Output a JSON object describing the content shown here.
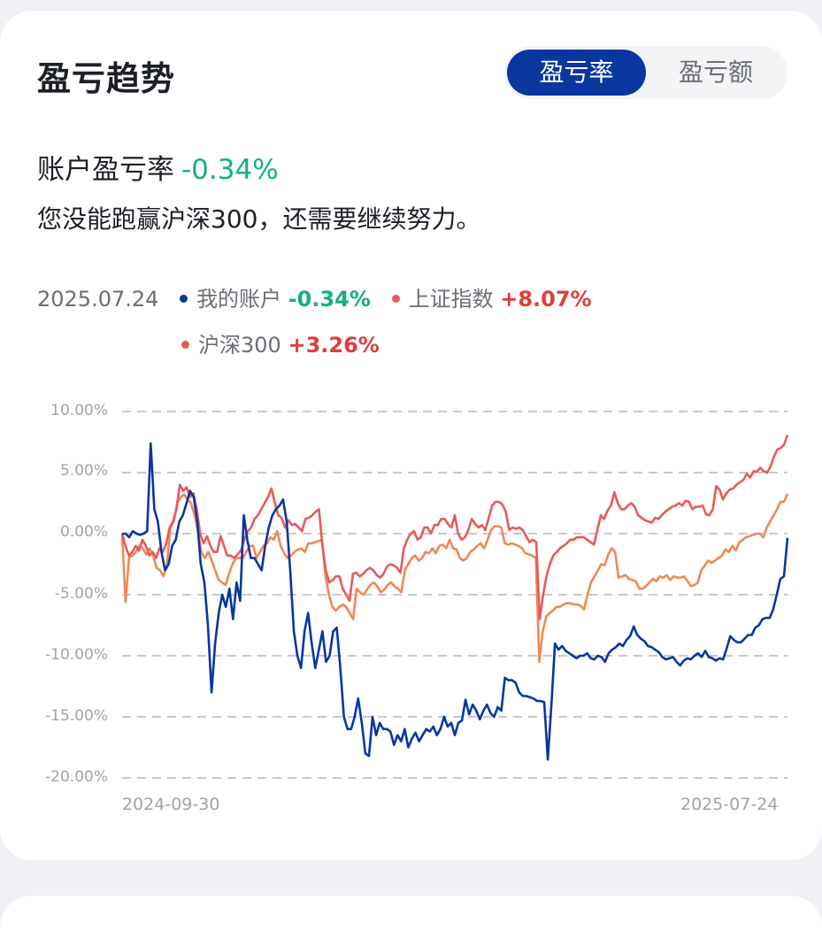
{
  "header": {
    "title": "盈亏趋势"
  },
  "toggle": {
    "options": [
      {
        "label": "盈亏率",
        "active": true
      },
      {
        "label": "盈亏额",
        "active": false
      }
    ]
  },
  "summary": {
    "label": "账户盈亏率",
    "value": "-0.34%",
    "message": "您没能跑赢沪深300，还需要继续努力。"
  },
  "legend": {
    "date": "2025.07.24",
    "items": [
      {
        "name": "我的账户",
        "value": "-0.34%",
        "color": "#0a36a0"
      },
      {
        "name": "上证指数",
        "value": "+8.07%",
        "color": "#e85a5a"
      },
      {
        "name": "沪深300",
        "value": "+3.26%",
        "color": "#ee8a55"
      }
    ]
  },
  "colors": {
    "accent": "#0a36a0",
    "positive": "#e23b3b",
    "negative": "#17b07a",
    "grid": "#c8c9cc"
  },
  "chart_data": {
    "type": "line",
    "title": "盈亏趋势",
    "xlabel": "",
    "ylabel": "",
    "x_start": "2024-09-30",
    "x_end": "2025-07-24",
    "x_tick_labels": [
      "2024-09-30",
      "2025-07-24"
    ],
    "y_tick_labels": [
      "10.00%",
      "5.00%",
      "0.00%",
      "-5.00%",
      "-10.00%",
      "-15.00%",
      "-20.00%"
    ],
    "ylim": [
      -20,
      10
    ],
    "grid": true,
    "legend_position": "top",
    "series": [
      {
        "name": "我的账户",
        "color": "#0a36a0",
        "final": -0.34,
        "values": [
          0,
          0,
          -0.3,
          0.2,
          0,
          -0.1,
          0,
          0.2,
          7.4,
          2,
          1,
          -1.5,
          -3,
          -2.5,
          -1,
          -0.5,
          1,
          1.5,
          2.5,
          3.5,
          3,
          1,
          -2.5,
          -4,
          -7.5,
          -13,
          -9,
          -6.5,
          -5,
          -6,
          -4.5,
          -7,
          -4,
          -5.5,
          1.5,
          -0.5,
          -2,
          -2,
          -2.5,
          -3,
          -1,
          0.5,
          1.5,
          2,
          2.3,
          2.8,
          1,
          -3,
          -8,
          -10,
          -11,
          -8,
          -6.5,
          -9,
          -11,
          -9.5,
          -8,
          -10.5,
          -10,
          -8,
          -7.7,
          -11,
          -15,
          -16,
          -16,
          -15,
          -13.5,
          -15.5,
          -18,
          -18.2,
          -15,
          -16.5,
          -15.5,
          -16,
          -16,
          -16.2,
          -17.3,
          -16.5,
          -17,
          -16,
          -17.5,
          -16.8,
          -16.3,
          -17,
          -16.5,
          -16,
          -16.2,
          -15.8,
          -16.5,
          -16,
          -15,
          -15.8,
          -15.5,
          -16.5,
          -15.5,
          -15.3,
          -13.6,
          -14.8,
          -14,
          -14.5,
          -15.2,
          -14.5,
          -14,
          -14.7,
          -15,
          -14.2,
          -14.5,
          -11.8,
          -12,
          -12,
          -12.2,
          -13,
          -13.3,
          -13.3,
          -13.4,
          -13.5,
          -13.7,
          -13.7,
          -13.8,
          -18.5,
          -14,
          -9,
          -9.5,
          -9.2,
          -9.6,
          -9.8,
          -10,
          -10.2,
          -10,
          -10,
          -9.8,
          -10.2,
          -10.3,
          -10,
          -10.1,
          -10.5,
          -9.8,
          -9.5,
          -9.3,
          -9,
          -9.2,
          -8.7,
          -8.4,
          -7.6,
          -8.3,
          -8.6,
          -8.8,
          -9.2,
          -9.3,
          -9.5,
          -9.7,
          -10.1,
          -10.3,
          -10.2,
          -10.1,
          -10.5,
          -10.8,
          -10.4,
          -10.2,
          -10.3,
          -10,
          -9.8,
          -10.1,
          -9.6,
          -10.1,
          -10.2,
          -10.4,
          -10.2,
          -10.3,
          -9.4,
          -8.4,
          -8.7,
          -8.9,
          -8.9,
          -8.6,
          -8.3,
          -8.3,
          -7.7,
          -7.5,
          -7,
          -6.9,
          -6.9,
          -6.2,
          -5,
          -3.7,
          -3.5,
          -0.34
        ]
      },
      {
        "name": "上证指数",
        "color": "#e85a5a",
        "final": 8.07,
        "values": [
          0,
          -1,
          -1.8,
          -1.5,
          -1,
          -1.4,
          -0.5,
          -1,
          -1.8,
          -1.5,
          -2,
          -1.2,
          -1.5,
          -0.8,
          0.5,
          1,
          2,
          4,
          3.5,
          3.8,
          3,
          3.3,
          2,
          0,
          -0.8,
          -0.2,
          -1,
          -1.5,
          -1.5,
          -0.2,
          -1,
          -1.8,
          -1.8,
          -2,
          -1.7,
          -1.4,
          -0.5,
          0.2,
          0.5,
          1.2,
          1.5,
          2,
          2.5,
          3,
          3.7,
          2.5,
          1.5,
          1.3,
          0.5,
          1.1,
          0.7,
          0.8,
          0.5,
          0.2,
          1.2,
          1.3,
          1.5,
          1.8,
          2,
          -1,
          -3,
          -4,
          -3.8,
          -3.5,
          -3.5,
          -4.5,
          -5,
          -5.5,
          -3.3,
          -3.2,
          -3.5,
          -3.3,
          -3,
          -2.8,
          -3,
          -3.4,
          -3.6,
          -3.3,
          -2.7,
          -2.5,
          -2.6,
          -2.8,
          -3.2,
          -1.2,
          -0.5,
          0,
          0.2,
          -0.5,
          -0.3,
          0.5,
          0.5,
          0,
          0.7,
          0.7,
          1.2,
          1.2,
          0.8,
          0.5,
          1.5,
          0,
          -0.5,
          -0.3,
          0.3,
          1.2,
          0.8,
          0.5,
          0.7,
          0.3,
          1.3,
          2.3,
          2.6,
          2.6,
          2.4,
          1.8,
          0.3,
          0.5,
          0.4,
          0.5,
          0.3,
          -0.2,
          -0.7,
          -0.5,
          -0.7,
          -7,
          -5,
          -3.5,
          -2.5,
          -1.8,
          -1.5,
          -1.2,
          -1,
          -0.8,
          -0.5,
          -0.5,
          -0.3,
          -0.3,
          -0.3,
          -0.5,
          -0.7,
          -0.9,
          0.3,
          1.5,
          1.2,
          1.9,
          2.3,
          3.4,
          2.5,
          2,
          2,
          2.3,
          2.5,
          2.2,
          1.5,
          1.3,
          1.1,
          1,
          0.9,
          1.3,
          1.2,
          1.5,
          1.8,
          2,
          2.2,
          2.3,
          2.5,
          2.3,
          2.7,
          2.6,
          2,
          2.2,
          2.2,
          2.3,
          1.6,
          1.5,
          2,
          3.9,
          3.6,
          2.8,
          3.3,
          3.6,
          3.7,
          4,
          4.2,
          4.4,
          4.9,
          4.6,
          5.1,
          5.1,
          5.4,
          5.1,
          5,
          5.5,
          6.3,
          6.9,
          7,
          7.3,
          8.07
        ]
      },
      {
        "name": "沪深300",
        "color": "#ee8a55",
        "final": 3.26,
        "values": [
          0,
          -5.6,
          -2,
          -1.8,
          -1.5,
          -1,
          -1.2,
          -1.7,
          -1.2,
          -1.8,
          -2.8,
          -3,
          -3.5,
          -2.5,
          0.5,
          1,
          2.5,
          3,
          3.2,
          2.8,
          2.5,
          1.5,
          0.3,
          -1.5,
          -2,
          -1.5,
          -2.2,
          -3,
          -3.8,
          -4,
          -4.2,
          -3.3,
          -2.5,
          -2,
          -2,
          -2,
          -1.5,
          -1,
          -1,
          -2,
          -1.5,
          -1,
          -0.8,
          -0.3,
          -0.5,
          0.2,
          -1,
          -1.6,
          -2,
          -1.8,
          -1.5,
          -1.3,
          -1.2,
          -1.5,
          -0.8,
          -0.8,
          -0.7,
          -0.6,
          -0.5,
          -3.5,
          -5,
          -6,
          -6.3,
          -6,
          -5.8,
          -6,
          -6.5,
          -7,
          -4.5,
          -4.8,
          -5,
          -4.6,
          -4.2,
          -4,
          -4.3,
          -4.8,
          -4.6,
          -4.2,
          -4,
          -4.3,
          -4.5,
          -4.8,
          -3,
          -2.5,
          -2,
          -1.8,
          -2.2,
          -2,
          -1.5,
          -1.6,
          -1.2,
          -1.6,
          -1,
          -0.9,
          -1.2,
          -0.5,
          -1.2,
          -1.3,
          -2,
          -2.2,
          -2,
          -1.5,
          -1.3,
          -1,
          -0.8,
          -1.2,
          -0.5,
          0.3,
          0.6,
          0.6,
          0.5,
          -0.8,
          -0.9,
          -0.8,
          -0.9,
          -1,
          -1.2,
          -1.6,
          -1.7,
          -1.8,
          -2,
          -10.5,
          -8,
          -6.8,
          -6.5,
          -6.3,
          -6,
          -6,
          -5.8,
          -5.7,
          -5.7,
          -5.8,
          -5.8,
          -5.9,
          -6.2,
          -5,
          -4,
          -3.5,
          -3,
          -2.5,
          -2.6,
          -1.7,
          -1.2,
          -1.5,
          -3.6,
          -3.5,
          -3.4,
          -3.7,
          -3.8,
          -3.9,
          -4.5,
          -4.5,
          -4.3,
          -4,
          -3.7,
          -3.9,
          -3.5,
          -3.6,
          -3.4,
          -3.8,
          -3.5,
          -3.6,
          -3.6,
          -3.5,
          -3.9,
          -4.3,
          -4.2,
          -4,
          -3,
          -2.6,
          -2.2,
          -2.4,
          -2.2,
          -2,
          -1.8,
          -1.3,
          -1.5,
          -1,
          -1.4,
          -0.7,
          -0.5,
          -0.3,
          -0.2,
          -0.1,
          0,
          0,
          -0.3,
          0.5,
          1,
          1.5,
          2,
          2.6,
          2.6,
          3.26
        ]
      }
    ]
  }
}
